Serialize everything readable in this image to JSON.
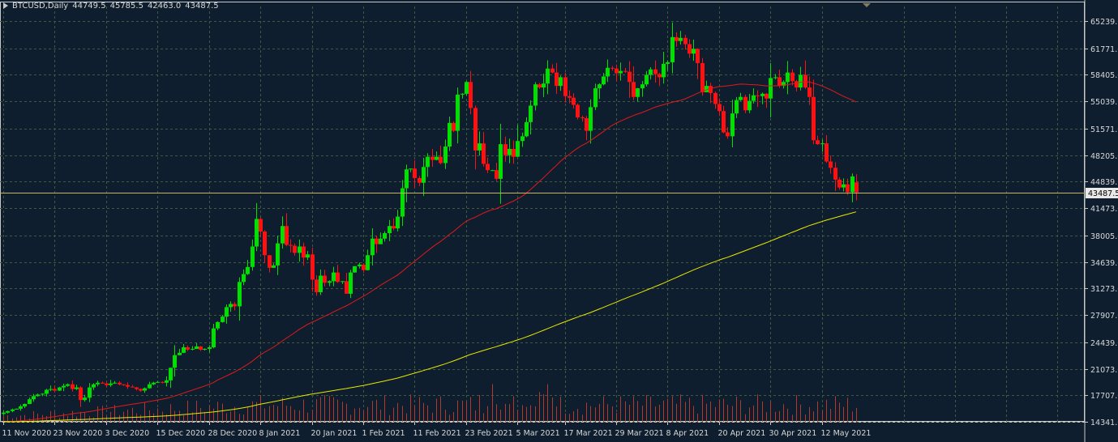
{
  "header": {
    "symbol": "BTCUSD,Daily",
    "open": "44749.5",
    "high": "45785.5",
    "low": "42463.0",
    "close": "43487.5"
  },
  "colors": {
    "background": "#0f1e2e",
    "grid": "#3f5b3f",
    "axis": "#c8c8c8",
    "bull": "#00e000",
    "bear": "#ff1111",
    "ma_fast": "#e01a1a",
    "ma_slow": "#e8e800",
    "volume": "#b33a2a",
    "price_line": "#c8b560"
  },
  "chart_data": {
    "type": "candlestick",
    "symbol": "BTCUSD",
    "timeframe": "Daily",
    "y_ticks": [
      "65239.0",
      "61771.0",
      "58405.0",
      "55039.0",
      "51571.0",
      "48205.0",
      "44839.0",
      "41473.0",
      "38005.0",
      "34639.0",
      "31273.0",
      "27907.0",
      "24439.0",
      "21073.0",
      "17707.0",
      "14341.0"
    ],
    "ylim": [
      14341,
      65239
    ],
    "x_tick_labels": [
      "11 Nov 2020",
      "23 Nov 2020",
      "3 Dec 2020",
      "15 Dec 2020",
      "28 Dec 2020",
      "8 Jan 2021",
      "20 Jan 2021",
      "1 Feb 2021",
      "11 Feb 2021",
      "23 Feb 2021",
      "5 Mar 2021",
      "17 Mar 2021",
      "29 Mar 2021",
      "8 Apr 2021",
      "20 Apr 2021",
      "30 Apr 2021",
      "12 May 2021"
    ],
    "current_price_label": "43487.5",
    "last_bar": {
      "open": 44749.5,
      "high": 45785.5,
      "low": 42463.0,
      "close": 43487.5
    },
    "close_series": [
      15500,
      15700,
      15900,
      16000,
      16300,
      16600,
      17200,
      17600,
      17800,
      17900,
      18400,
      18500,
      18300,
      18700,
      18900,
      19100,
      18500,
      18700,
      17100,
      17400,
      18700,
      19100,
      19300,
      19200,
      19000,
      19200,
      19300,
      19100,
      19000,
      18800,
      18700,
      18500,
      18300,
      18600,
      19100,
      19300,
      19400,
      19300,
      19600,
      21200,
      22800,
      23100,
      23800,
      23500,
      23600,
      23900,
      23500,
      23600,
      23800,
      26200,
      27000,
      27700,
      28900,
      29300,
      29000,
      32100,
      33100,
      34000,
      36600,
      40100,
      38500,
      35500,
      33900,
      34200,
      37000,
      39200,
      36800,
      36700,
      35800,
      36600,
      35200,
      35600,
      32400,
      30800,
      32900,
      32000,
      32200,
      33300,
      32100,
      32200,
      30600,
      33300,
      34100,
      34300,
      33600,
      35500,
      37600,
      36900,
      37600,
      38300,
      39200,
      38900,
      40400,
      44000,
      46400,
      46500,
      45300,
      44700,
      46700,
      48000,
      47600,
      48000,
      47200,
      49300,
      52300,
      51300,
      55900,
      56000,
      57500,
      54200,
      48800,
      49700,
      47100,
      46300,
      46300,
      45200,
      49600,
      48200,
      49000,
      48000,
      50000,
      50600,
      52400,
      54500,
      57200,
      56800,
      57300,
      59200,
      58700,
      57000,
      58100,
      55700,
      55500,
      54600,
      53000,
      52900,
      51300,
      54300,
      56700,
      57200,
      58200,
      59300,
      59200,
      58600,
      58900,
      58800,
      57500,
      55600,
      56700,
      57200,
      58400,
      59100,
      58500,
      58100,
      59800,
      60000,
      63200,
      62700,
      63100,
      62300,
      61100,
      61700,
      59900,
      56200,
      57000,
      56100,
      54700,
      53800,
      51100,
      50600,
      53500,
      55200,
      55600,
      53900,
      55100,
      55800,
      55700,
      56000,
      55400,
      58000,
      58100,
      57000,
      57500,
      58700,
      57600,
      56800,
      58400,
      56800,
      55600,
      50100,
      49600,
      49700,
      47400,
      46600,
      45100,
      44100,
      44500,
      43500,
      45500,
      43487.5
    ],
    "series": [
      {
        "type": "line",
        "style": "moving-average (fast)"
      },
      {
        "type": "line",
        "style": "moving-average (slow)"
      },
      {
        "type": "histogram",
        "style": "volume"
      }
    ]
  }
}
